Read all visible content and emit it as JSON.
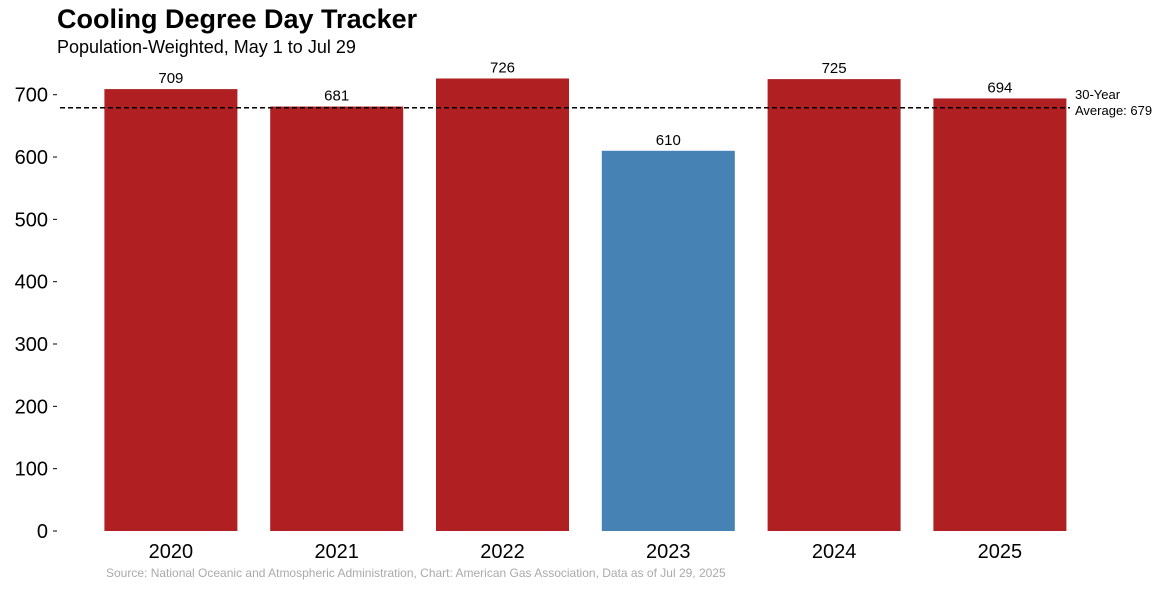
{
  "chart_data": {
    "type": "bar",
    "title": "Cooling Degree Day Tracker",
    "subtitle": "Population-Weighted, May 1 to Jul 29",
    "categories": [
      "2020",
      "2021",
      "2022",
      "2023",
      "2024",
      "2025"
    ],
    "values": [
      709,
      681,
      726,
      610,
      725,
      694
    ],
    "data_labels": [
      "709",
      "681",
      "726",
      "610",
      "725",
      "694"
    ],
    "bar_colors": [
      "#b02023",
      "#b02023",
      "#b02023",
      "#4682b4",
      "#b02023",
      "#b02023"
    ],
    "ylim": [
      0,
      730
    ],
    "yticks": [
      0,
      100,
      200,
      300,
      400,
      500,
      600,
      700
    ],
    "ytick_labels": [
      "0",
      "100",
      "200",
      "300",
      "400",
      "500",
      "600",
      "700"
    ],
    "xlabel": "",
    "ylabel": "",
    "grid": false,
    "reference_line": {
      "value": 679,
      "style": "dashed",
      "color": "#000000",
      "label_line1": "30-Year",
      "label_line2": "Average: 679"
    },
    "source": "Source: National Oceanic and Atmospheric Administration, Chart: American Gas Association, Data as of Jul 29, 2025"
  }
}
